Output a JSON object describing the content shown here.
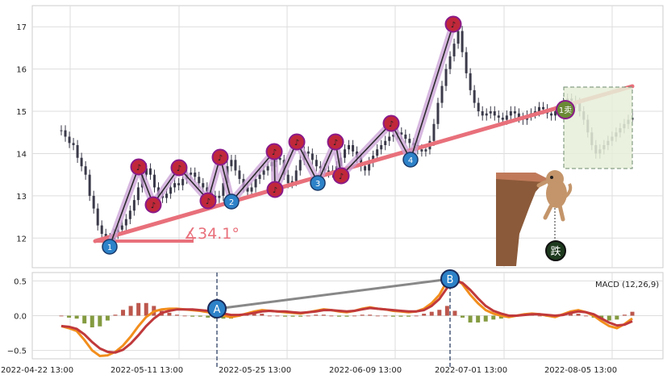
{
  "chart_data": [
    {
      "type": "candlestick",
      "title": "",
      "ylim": [
        11.3,
        17.5
      ],
      "y_ticks": [
        "12",
        "13",
        "14",
        "15",
        "16",
        "17"
      ],
      "grid": true,
      "price_series": [
        14.55,
        14.4,
        14.25,
        14.2,
        13.9,
        13.7,
        13.5,
        13.0,
        12.7,
        12.3,
        12.1,
        12.0,
        11.95,
        12.1,
        12.2,
        12.3,
        12.45,
        12.65,
        12.9,
        13.2,
        13.5,
        13.65,
        13.5,
        13.2,
        13.0,
        12.95,
        13.05,
        13.2,
        13.3,
        13.25,
        13.4,
        13.5,
        13.55,
        13.45,
        13.3,
        13.2,
        13.1,
        13.0,
        12.95,
        13.0,
        13.3,
        13.7,
        13.85,
        13.6,
        13.4,
        13.2,
        13.1,
        13.2,
        13.4,
        13.5,
        13.6,
        13.7,
        13.8,
        13.9,
        13.85,
        13.5,
        13.3,
        13.35,
        13.6,
        13.85,
        14.05,
        14.0,
        13.85,
        13.7,
        13.65,
        13.6,
        13.55,
        13.6,
        13.7,
        13.9,
        14.1,
        14.2,
        14.05,
        13.9,
        13.7,
        13.6,
        13.8,
        13.95,
        14.1,
        14.2,
        14.3,
        14.4,
        14.45,
        14.5,
        14.45,
        14.35,
        14.25,
        14.2,
        14.1,
        14.05,
        14.1,
        14.3,
        14.7,
        15.2,
        15.6,
        16.0,
        16.3,
        16.6,
        16.9,
        16.4,
        15.9,
        15.5,
        15.2,
        15.0,
        14.9,
        14.95,
        15.0,
        14.9,
        14.85,
        14.8,
        14.9,
        15.0,
        14.95,
        14.85,
        14.8,
        14.9,
        14.95,
        15.0,
        15.1,
        15.05,
        14.95,
        14.9,
        15.0,
        15.1,
        15.2,
        15.3,
        15.25,
        15.2,
        15.0,
        14.8,
        14.5,
        14.2,
        14.0,
        14.1,
        14.2,
        14.3,
        14.4,
        14.5,
        14.6,
        14.7,
        14.8,
        14.85
      ],
      "trend_labels": [
        "1",
        "2",
        "3",
        "4"
      ],
      "sell_markers": [
        "♪",
        "♪",
        "♪",
        "♪",
        "♪",
        "♪",
        "♪",
        "♪",
        "♪",
        "♪",
        "♪"
      ],
      "buy_sell_badge": "1卖",
      "angle_label": "∡34.1°",
      "figure_label": "跌",
      "colors": {
        "candle": "#3a3a4a",
        "trend_line": "#e8707b",
        "zigzag": "#2b2b2b",
        "zigzag_glow": "#c9a0d6",
        "sell_marker": "#c0283a",
        "sell_border": "#8a1a8a",
        "buy_marker": "#2d82c8",
        "box_fill": "#e6eed8",
        "box_border": "#6e8a6e",
        "badge": "#6a8a35"
      }
    },
    {
      "type": "macd",
      "legend": "MACD (12,26,9)",
      "ylim": [
        -0.62,
        0.62
      ],
      "y_ticks": [
        "0.5",
        "0.0",
        "−0.5"
      ],
      "x_tick_labels": [
        "2022-04-22 13:00",
        "2022-05-11 13:00",
        "2022-05-25 13:00",
        "2022-06-09 13:00",
        "2022-07-01 13:00",
        "2022-08-05 13:00"
      ],
      "dif": [
        -0.15,
        -0.18,
        -0.22,
        -0.35,
        -0.5,
        -0.58,
        -0.57,
        -0.52,
        -0.43,
        -0.3,
        -0.15,
        -0.02,
        0.06,
        0.09,
        0.1,
        0.1,
        0.09,
        0.08,
        0.07,
        0.05,
        0.02,
        0.0,
        -0.02,
        0.0,
        0.03,
        0.06,
        0.08,
        0.07,
        0.06,
        0.05,
        0.04,
        0.03,
        0.05,
        0.07,
        0.09,
        0.08,
        0.06,
        0.05,
        0.07,
        0.1,
        0.12,
        0.1,
        0.09,
        0.07,
        0.06,
        0.05,
        0.06,
        0.1,
        0.18,
        0.3,
        0.5,
        0.55,
        0.45,
        0.3,
        0.18,
        0.08,
        0.03,
        0.0,
        -0.02,
        0.0,
        0.02,
        0.03,
        0.02,
        0.0,
        -0.02,
        0.02,
        0.06,
        0.08,
        0.05,
        0.0,
        -0.08,
        -0.15,
        -0.18,
        -0.12,
        -0.04
      ],
      "dea": [
        -0.15,
        -0.16,
        -0.19,
        -0.27,
        -0.38,
        -0.47,
        -0.52,
        -0.53,
        -0.49,
        -0.4,
        -0.28,
        -0.15,
        -0.04,
        0.04,
        0.07,
        0.09,
        0.09,
        0.09,
        0.08,
        0.07,
        0.05,
        0.03,
        0.01,
        0.01,
        0.02,
        0.04,
        0.06,
        0.07,
        0.06,
        0.06,
        0.05,
        0.04,
        0.05,
        0.06,
        0.08,
        0.08,
        0.07,
        0.06,
        0.07,
        0.09,
        0.11,
        0.1,
        0.09,
        0.08,
        0.07,
        0.06,
        0.06,
        0.08,
        0.14,
        0.24,
        0.4,
        0.5,
        0.47,
        0.37,
        0.25,
        0.14,
        0.07,
        0.03,
        0.0,
        0.0,
        0.01,
        0.02,
        0.02,
        0.01,
        0.0,
        0.01,
        0.04,
        0.06,
        0.05,
        0.02,
        -0.04,
        -0.1,
        -0.14,
        -0.13,
        -0.08
      ],
      "divergence_labels": [
        "A",
        "B"
      ],
      "colors": {
        "dif": "#f28e1c",
        "dea": "#c0393b",
        "hist_pos": "#b03a2e",
        "hist_neg": "#6e8a1e",
        "divergence": "#888888",
        "marker": "#2d82c8"
      }
    }
  ]
}
